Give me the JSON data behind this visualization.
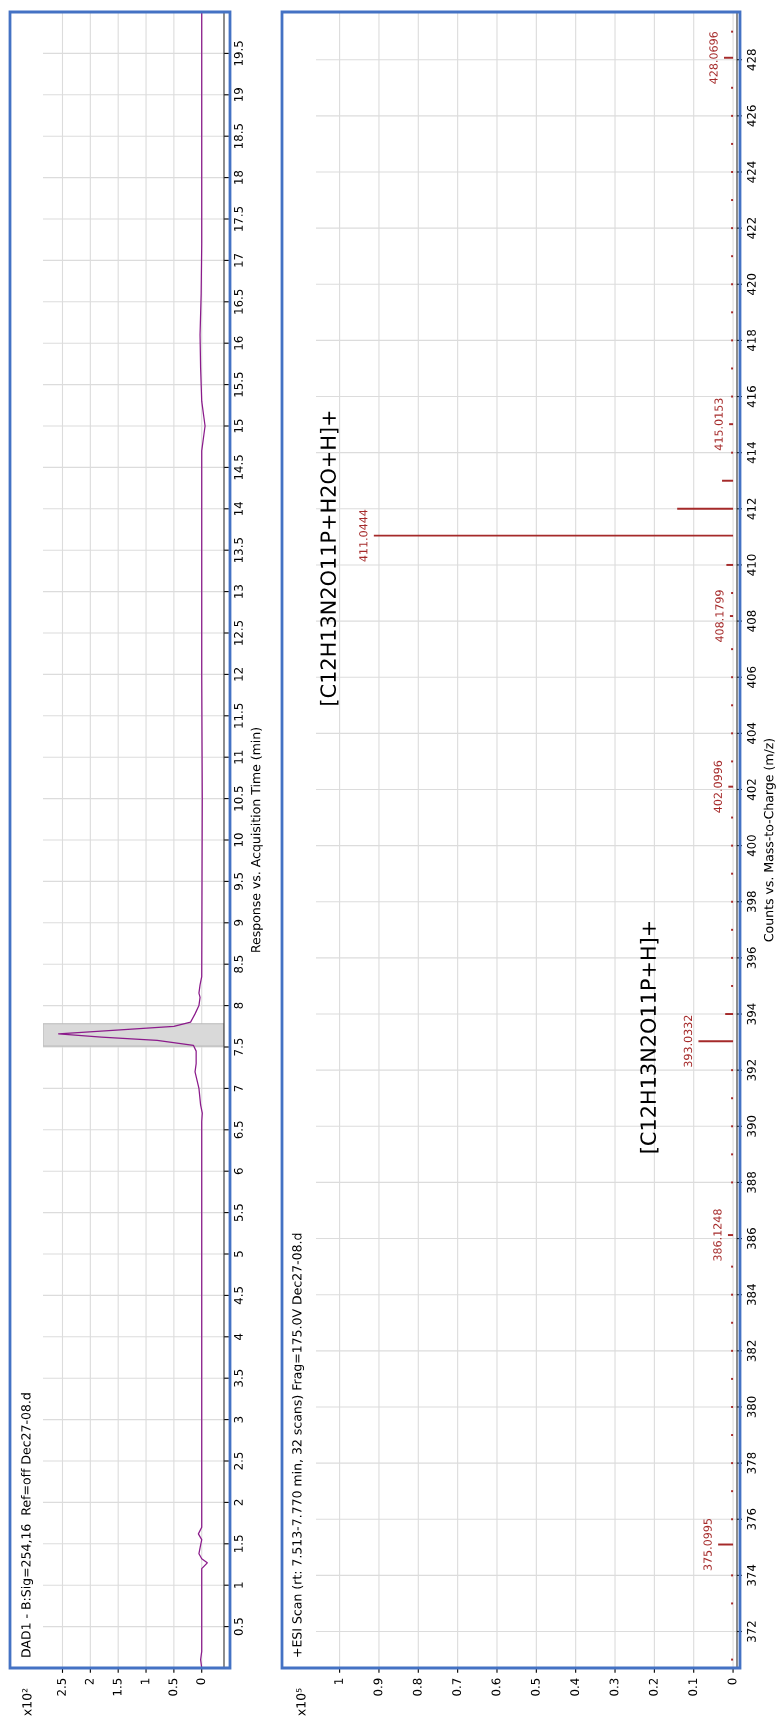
{
  "chart_data": [
    {
      "type": "line",
      "orientation": "horizontal",
      "title": "DAD1 - B:Sig=254,16  Ref=off Dec27-08.d",
      "ylabel": "Response vs. Acquisition Time (min)",
      "annotations": [
        "x10²"
      ],
      "series": [
        {
          "color": "#8b1a8b",
          "x": [
            0,
            0.1,
            0.2,
            1.2,
            1.27,
            1.32,
            1.38,
            1.45,
            1.55,
            1.62,
            1.7,
            3,
            6.6,
            6.7,
            6.8,
            7.0,
            7.2,
            7.3,
            7.45,
            7.52,
            7.58,
            7.62,
            7.66,
            7.7,
            7.75,
            7.8,
            7.9,
            8.0,
            8.1,
            8.15,
            8.25,
            8.35,
            10.5,
            12,
            14.7,
            14.9,
            15.0,
            15.1,
            15.3,
            15.7,
            16.1,
            16.6,
            17.2,
            20
          ],
          "values": [
            0,
            0.02,
            0,
            0,
            -0.1,
            0,
            0.05,
            0.03,
            0,
            0.06,
            0,
            0,
            0,
            -0.01,
            0.02,
            0.05,
            0.12,
            0.1,
            0.1,
            0.15,
            0.8,
            1.8,
            2.57,
            1.6,
            0.5,
            0.2,
            0.12,
            0.05,
            0.03,
            0.05,
            0.03,
            0,
            -0.01,
            0,
            0,
            -0.04,
            -0.06,
            -0.04,
            0,
            0.02,
            0.03,
            0.01,
            0,
            0
          ]
        }
      ],
      "bands": [
        {
          "axis": "y",
          "from": 7.51,
          "to": 7.78,
          "color": "#d9d9d9"
        }
      ],
      "xlim": [
        2.85,
        -0.4
      ],
      "xticks": [
        0,
        0.5,
        1,
        1.5,
        2,
        2.5
      ],
      "ylim": [
        0,
        20
      ],
      "yticks": [
        0.5,
        1,
        1.5,
        2,
        2.5,
        3,
        3.5,
        4,
        4.5,
        5,
        5.5,
        6,
        6.5,
        7,
        7.5,
        8,
        8.5,
        9,
        9.5,
        10,
        10.5,
        11,
        11.5,
        12,
        12.5,
        13,
        13.5,
        14,
        14.5,
        15,
        15.5,
        16,
        16.5,
        17,
        17.5,
        18,
        18.5,
        19,
        19.5
      ],
      "grid": true
    },
    {
      "type": "bar",
      "orientation": "horizontal",
      "title": "+ESI Scan (rt: 7.513-7.770 min, 32 scans) Frag=175.0V Dec27-08.d",
      "ylabel": "Counts vs. Mass-to-Charge (m/z)",
      "annotations": [
        "x10⁵",
        "[C12H13N2O11P+H]+",
        "[C12H13N2O11P+H2O+H]+",
        {
          "text": "375.0995",
          "x": 0.038,
          "y": 375.0995
        },
        {
          "text": "386.1248",
          "x": 0.013,
          "y": 386.1248
        },
        {
          "text": "393.0332",
          "x": 0.088,
          "y": 393.0332
        },
        {
          "text": "402.0996",
          "x": 0.012,
          "y": 402.0996
        },
        {
          "text": "408.1799",
          "x": 0.008,
          "y": 408.1799
        },
        {
          "text": "411.0444",
          "x": 0.913,
          "y": 411.0444
        },
        {
          "text": "415.0153",
          "x": 0.01,
          "y": 415.0153
        },
        {
          "text": "428.0696",
          "x": 0.023,
          "y": 428.0696
        }
      ],
      "x": [
        371,
        372,
        373,
        374,
        375.0995,
        376,
        377,
        378,
        379,
        380,
        381,
        382,
        383,
        384,
        385,
        386.1248,
        387,
        388,
        389,
        390,
        391,
        392,
        393.0332,
        394,
        395,
        396,
        397,
        398,
        399,
        400,
        401,
        402.0996,
        403,
        404,
        405,
        406,
        407,
        408.1799,
        409,
        410,
        411.0444,
        412,
        413,
        414,
        415.0153,
        416,
        417,
        418,
        419,
        420,
        421,
        422,
        423,
        424,
        425,
        426,
        427,
        428.0696,
        429
      ],
      "values": [
        0.005,
        null,
        0.005,
        0.005,
        0.038,
        0.005,
        0.005,
        0.005,
        0.005,
        0.005,
        0.005,
        0.005,
        0.005,
        0.005,
        0.005,
        0.013,
        null,
        0.005,
        0.005,
        0.005,
        0.005,
        0.005,
        0.088,
        0.02,
        0.005,
        0.005,
        0.005,
        0.005,
        0.005,
        0.005,
        0.005,
        0.012,
        0.005,
        0.005,
        0.005,
        0.005,
        0.005,
        0.008,
        0.005,
        0.017,
        0.913,
        0.142,
        0.028,
        0.005,
        0.01,
        0.005,
        0.005,
        0.005,
        0.005,
        0.005,
        0.005,
        0.005,
        0.005,
        0.005,
        0.005,
        0.005,
        0.005,
        0.023,
        0.005
      ],
      "color": "#a52a2a",
      "xlim": [
        1.06,
        -0.01
      ],
      "xticks": [
        0,
        0.1,
        0.2,
        0.3,
        0.4,
        0.5,
        0.6,
        0.7,
        0.8,
        0.9,
        1
      ],
      "ylim": [
        370.7,
        429.7
      ],
      "yticks": [
        372,
        374,
        376,
        378,
        380,
        382,
        384,
        386,
        388,
        390,
        392,
        394,
        396,
        398,
        400,
        402,
        404,
        406,
        408,
        410,
        412,
        414,
        416,
        418,
        420,
        422,
        424,
        426,
        428
      ],
      "grid": true
    }
  ]
}
